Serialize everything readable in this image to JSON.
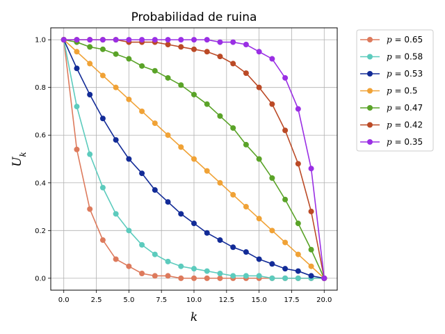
{
  "chart_data": {
    "type": "line",
    "title": "Probabilidad de ruina",
    "xlabel": "k",
    "ylabel": "U_k",
    "xlim": [
      -1,
      21
    ],
    "ylim": [
      -0.05,
      1.05
    ],
    "xticks": [
      0.0,
      2.5,
      5.0,
      7.5,
      10.0,
      12.5,
      15.0,
      17.5,
      20.0
    ],
    "xtick_labels": [
      "0.0",
      "2.5",
      "5.0",
      "7.5",
      "10.0",
      "12.5",
      "15.0",
      "17.5",
      "20.0"
    ],
    "yticks": [
      0.0,
      0.2,
      0.4,
      0.6,
      0.8,
      1.0
    ],
    "ytick_labels": [
      "0.0",
      "0.2",
      "0.4",
      "0.6",
      "0.8",
      "1.0"
    ],
    "grid": true,
    "legend_position": "outside-upper-right",
    "x": [
      0,
      1,
      2,
      3,
      4,
      5,
      6,
      7,
      8,
      9,
      10,
      11,
      12,
      13,
      14,
      15,
      16,
      17,
      18,
      19,
      20
    ],
    "series": [
      {
        "name": "p = 0.65",
        "p_label": "p",
        "p_value": "= 0.65",
        "color": "#dd7a5c",
        "values": [
          1.0,
          0.54,
          0.29,
          0.16,
          0.08,
          0.05,
          0.02,
          0.01,
          0.01,
          0.0,
          0.0,
          0.0,
          0.0,
          0.0,
          0.0,
          0.0,
          0.0,
          0.0,
          0.0,
          0.0,
          0.0
        ]
      },
      {
        "name": "p = 0.58",
        "p_label": "p",
        "p_value": "= 0.58",
        "color": "#5ccbbd",
        "values": [
          1.0,
          0.72,
          0.52,
          0.38,
          0.27,
          0.2,
          0.14,
          0.1,
          0.07,
          0.05,
          0.04,
          0.03,
          0.02,
          0.01,
          0.01,
          0.01,
          0.0,
          0.0,
          0.0,
          0.0,
          0.0
        ]
      },
      {
        "name": "p = 0.53",
        "p_label": "p",
        "p_value": "= 0.53",
        "color": "#122b97",
        "values": [
          1.0,
          0.88,
          0.77,
          0.67,
          0.58,
          0.5,
          0.44,
          0.37,
          0.32,
          0.27,
          0.23,
          0.19,
          0.16,
          0.13,
          0.11,
          0.08,
          0.06,
          0.04,
          0.03,
          0.01,
          0.0
        ]
      },
      {
        "name": "p = 0.5",
        "p_label": "p",
        "p_value": "= 0.5",
        "color": "#f0a236",
        "values": [
          1.0,
          0.95,
          0.9,
          0.85,
          0.8,
          0.75,
          0.7,
          0.65,
          0.6,
          0.55,
          0.5,
          0.45,
          0.4,
          0.35,
          0.3,
          0.25,
          0.2,
          0.15,
          0.1,
          0.05,
          0.0
        ]
      },
      {
        "name": "p = 0.47",
        "p_label": "p",
        "p_value": "= 0.47",
        "color": "#5aa328",
        "values": [
          1.0,
          0.99,
          0.97,
          0.96,
          0.94,
          0.92,
          0.89,
          0.87,
          0.84,
          0.81,
          0.77,
          0.73,
          0.68,
          0.63,
          0.56,
          0.5,
          0.42,
          0.33,
          0.23,
          0.12,
          0.0
        ]
      },
      {
        "name": "p = 0.42",
        "p_label": "p",
        "p_value": "= 0.42",
        "color": "#bb4a26",
        "values": [
          1.0,
          1.0,
          1.0,
          1.0,
          1.0,
          0.99,
          0.99,
          0.99,
          0.98,
          0.97,
          0.96,
          0.95,
          0.93,
          0.9,
          0.86,
          0.8,
          0.73,
          0.62,
          0.48,
          0.28,
          0.0
        ]
      },
      {
        "name": "p = 0.35",
        "p_label": "p",
        "p_value": "= 0.35",
        "color": "#9a2fe4",
        "values": [
          1.0,
          1.0,
          1.0,
          1.0,
          1.0,
          1.0,
          1.0,
          1.0,
          1.0,
          1.0,
          1.0,
          1.0,
          0.99,
          0.99,
          0.98,
          0.95,
          0.92,
          0.84,
          0.71,
          0.46,
          0.0
        ]
      }
    ]
  }
}
